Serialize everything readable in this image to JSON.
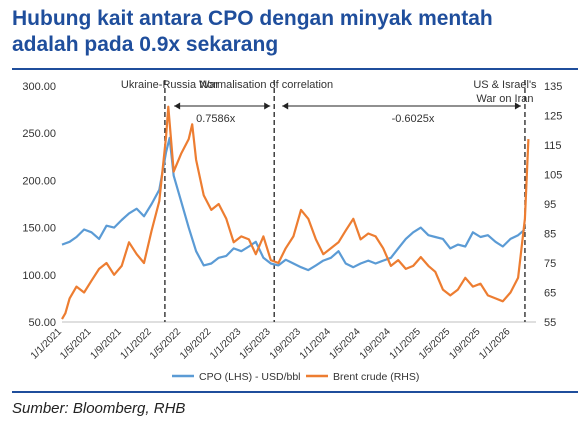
{
  "header": {
    "title_line1": "Hubung kait antara CPO dengan minyak mentah",
    "title_line2": "adalah pada 0.9x sekarang"
  },
  "footer": {
    "source": "Sumber: Bloomberg, RHB"
  },
  "chart_data": {
    "type": "line",
    "title": "Hubung kait antara CPO dengan minyak mentah adalah pada 0.9x sekarang",
    "x_tick_labels": [
      "1/1/2021",
      "1/5/2021",
      "1/9/2021",
      "1/1/2022",
      "1/5/2022",
      "1/9/2022",
      "1/1/2023",
      "1/5/2023",
      "1/9/2023",
      "1/1/2024",
      "1/5/2024",
      "1/9/2024",
      "1/1/2025",
      "1/5/2025",
      "1/9/2025",
      "1/1/2026"
    ],
    "y_left": {
      "ylim": [
        50,
        300
      ],
      "ticks": [
        "50.00",
        "100.00",
        "150.00",
        "200.00",
        "250.00",
        "300.00"
      ]
    },
    "y_right": {
      "ylim": [
        55,
        135
      ],
      "ticks": [
        "55",
        "65",
        "75",
        "85",
        "95",
        "105",
        "115",
        "125",
        "135"
      ]
    },
    "grid": false,
    "legend_position": "bottom",
    "series": [
      {
        "name": "CPO (LHS) - USD/bbl",
        "axis": "left",
        "color": "#5b9bd5",
        "x": [
          "2021-01-01",
          "2021-02-01",
          "2021-03-01",
          "2021-04-01",
          "2021-05-01",
          "2021-06-01",
          "2021-07-01",
          "2021-08-01",
          "2021-09-01",
          "2021-10-01",
          "2021-11-01",
          "2021-12-01",
          "2022-01-01",
          "2022-02-01",
          "2022-03-01",
          "2022-03-15",
          "2022-04-01",
          "2022-05-01",
          "2022-06-01",
          "2022-07-01",
          "2022-08-01",
          "2022-09-01",
          "2022-10-01",
          "2022-11-01",
          "2022-12-01",
          "2023-01-01",
          "2023-02-01",
          "2023-03-01",
          "2023-04-01",
          "2023-05-01",
          "2023-06-01",
          "2023-07-01",
          "2023-08-01",
          "2023-09-01",
          "2023-10-01",
          "2023-11-01",
          "2023-12-01",
          "2024-01-01",
          "2024-02-01",
          "2024-03-01",
          "2024-04-01",
          "2024-05-01",
          "2024-06-01",
          "2024-07-01",
          "2024-08-01",
          "2024-09-01",
          "2024-10-01",
          "2024-11-01",
          "2024-12-01",
          "2025-01-01",
          "2025-02-01",
          "2025-03-01",
          "2025-04-01",
          "2025-05-01",
          "2025-06-01",
          "2025-07-01",
          "2025-08-01",
          "2025-09-01",
          "2025-10-01",
          "2025-11-01",
          "2025-12-01",
          "2026-01-01",
          "2026-02-01",
          "2026-03-01"
        ],
        "values": [
          132,
          135,
          140,
          148,
          145,
          138,
          152,
          150,
          158,
          165,
          170,
          162,
          175,
          190,
          230,
          245,
          205,
          178,
          150,
          125,
          110,
          112,
          118,
          120,
          128,
          125,
          130,
          135,
          118,
          112,
          110,
          116,
          112,
          108,
          105,
          110,
          115,
          118,
          125,
          112,
          108,
          112,
          115,
          112,
          115,
          118,
          128,
          138,
          145,
          150,
          142,
          140,
          138,
          128,
          132,
          130,
          145,
          140,
          142,
          135,
          130,
          138,
          142,
          148
        ]
      },
      {
        "name": "Brent crude (RHS)",
        "axis": "right",
        "color": "#ed7d31",
        "x": [
          "2021-01-01",
          "2021-01-15",
          "2021-02-01",
          "2021-03-01",
          "2021-04-01",
          "2021-05-01",
          "2021-06-01",
          "2021-07-01",
          "2021-08-01",
          "2021-09-01",
          "2021-10-01",
          "2021-11-01",
          "2021-12-01",
          "2022-01-01",
          "2022-02-01",
          "2022-03-01",
          "2022-03-10",
          "2022-04-01",
          "2022-05-01",
          "2022-06-01",
          "2022-06-15",
          "2022-07-01",
          "2022-08-01",
          "2022-09-01",
          "2022-10-01",
          "2022-11-01",
          "2022-12-01",
          "2023-01-01",
          "2023-02-01",
          "2023-03-01",
          "2023-04-01",
          "2023-05-01",
          "2023-06-01",
          "2023-07-01",
          "2023-08-01",
          "2023-09-01",
          "2023-10-01",
          "2023-11-01",
          "2023-12-01",
          "2024-01-01",
          "2024-02-01",
          "2024-03-01",
          "2024-04-01",
          "2024-05-01",
          "2024-06-01",
          "2024-07-01",
          "2024-08-01",
          "2024-09-01",
          "2024-10-01",
          "2024-11-01",
          "2024-12-01",
          "2025-01-01",
          "2025-02-01",
          "2025-03-01",
          "2025-04-01",
          "2025-05-01",
          "2025-06-01",
          "2025-07-01",
          "2025-08-01",
          "2025-09-01",
          "2025-10-01",
          "2025-11-01",
          "2025-12-01",
          "2026-01-01",
          "2026-02-01",
          "2026-03-01",
          "2026-03-15"
        ],
        "values": [
          56,
          58,
          63,
          67,
          65,
          69,
          73,
          75,
          71,
          74,
          82,
          78,
          75,
          86,
          96,
          118,
          128,
          106,
          112,
          117,
          122,
          110,
          98,
          93,
          95,
          90,
          82,
          84,
          83,
          78,
          84,
          76,
          75,
          80,
          84,
          93,
          90,
          83,
          78,
          80,
          82,
          86,
          90,
          83,
          85,
          84,
          80,
          74,
          76,
          73,
          74,
          77,
          74,
          72,
          66,
          64,
          66,
          70,
          67,
          68,
          64,
          63,
          62,
          65,
          70,
          90,
          117
        ]
      }
    ],
    "annotations": [
      {
        "x": "2022-02-24",
        "text": "Ukraine-Russia War"
      },
      {
        "x": "2023-05-15",
        "text": "Normalisation of correlation"
      },
      {
        "x": "2026-03-01",
        "text_lines": [
          "US & Israel's",
          "War on Iran"
        ]
      },
      {
        "x_range": [
          "2022-03-01",
          "2023-05-15"
        ],
        "text": "0.7586x"
      },
      {
        "x_range": [
          "2023-05-15",
          "2026-03-01"
        ],
        "text": "-0.6025x"
      }
    ]
  }
}
